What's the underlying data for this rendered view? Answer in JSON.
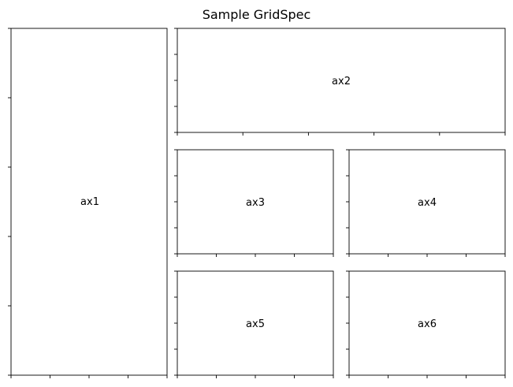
{
  "figure": {
    "title": "Sample GridSpec"
  },
  "axes": [
    {
      "id": "ax1",
      "label": "ax1"
    },
    {
      "id": "ax2",
      "label": "ax2"
    },
    {
      "id": "ax3",
      "label": "ax3"
    },
    {
      "id": "ax4",
      "label": "ax4"
    },
    {
      "id": "ax5",
      "label": "ax5"
    },
    {
      "id": "ax6",
      "label": "ax6"
    }
  ],
  "colors": {
    "spine": "#000000",
    "background": "#ffffff"
  }
}
